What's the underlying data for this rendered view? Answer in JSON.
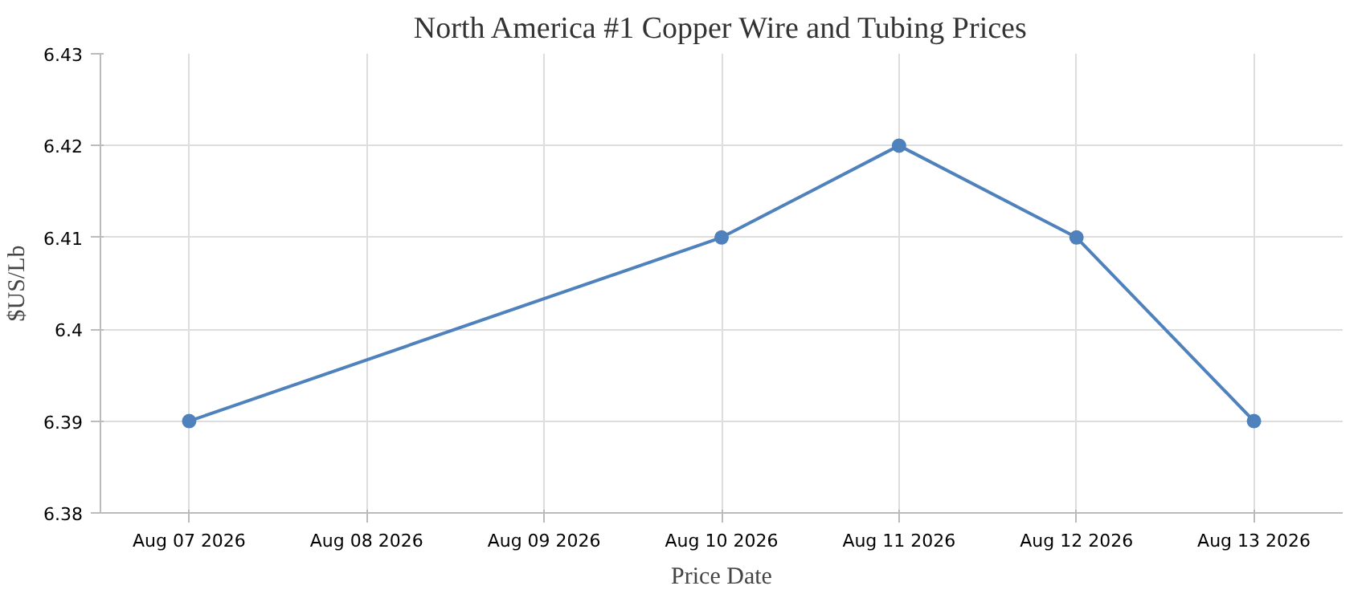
{
  "chart_data": {
    "type": "line",
    "title": "North America #1 Copper Wire and Tubing Prices",
    "xlabel": "Price Date",
    "ylabel": "$US/Lb",
    "x": [
      "2026-08-07",
      "2026-08-10",
      "2026-08-11",
      "2026-08-12",
      "2026-08-13"
    ],
    "series": [
      {
        "color": "#4f81bc",
        "values": [
          6.39,
          6.41,
          6.42,
          6.41,
          6.39
        ]
      }
    ],
    "xlim": [
      "2026-08-06T12:00",
      "2026-08-13T12:00"
    ],
    "xticks": [
      {
        "value": "2026-08-07",
        "label": "Aug 07 2026"
      },
      {
        "value": "2026-08-08",
        "label": "Aug 08 2026"
      },
      {
        "value": "2026-08-09",
        "label": "Aug 09 2026"
      },
      {
        "value": "2026-08-10",
        "label": "Aug 10 2026"
      },
      {
        "value": "2026-08-11",
        "label": "Aug 11 2026"
      },
      {
        "value": "2026-08-12",
        "label": "Aug 12 2026"
      },
      {
        "value": "2026-08-13",
        "label": "Aug 13 2026"
      }
    ],
    "ylim": [
      6.38,
      6.43
    ],
    "yticks": [
      6.38,
      6.39,
      6.4,
      6.41,
      6.42,
      6.43
    ],
    "grid": true,
    "marker": "circle",
    "line_style": "solid"
  }
}
